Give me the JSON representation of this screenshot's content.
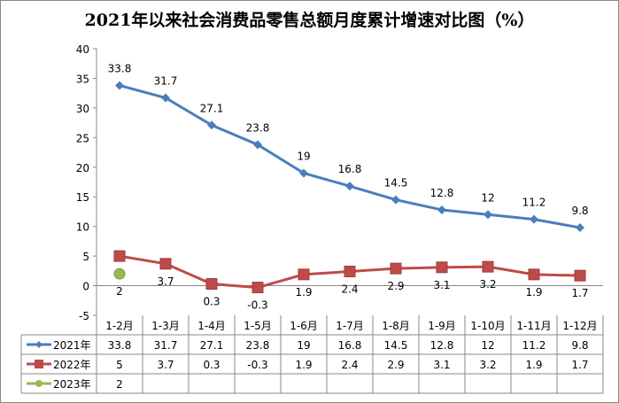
{
  "chart_data": {
    "type": "line",
    "title": "2021年以来社会消费品零售总额月度累计增速对比图（%）",
    "categories": [
      "1-2月",
      "1-3月",
      "1-4月",
      "1-5月",
      "1-6月",
      "1-7月",
      "1-8月",
      "1-9月",
      "1-10月",
      "1-11月",
      "1-12月"
    ],
    "series": [
      {
        "name": "2021年",
        "color": "#4a7ebb",
        "marker": "diamond",
        "values": [
          33.8,
          31.7,
          27.1,
          23.8,
          19,
          16.8,
          14.5,
          12.8,
          12,
          11.2,
          9.8
        ]
      },
      {
        "name": "2022年",
        "color": "#be4b48",
        "marker": "square",
        "values": [
          5,
          3.7,
          0.3,
          -0.3,
          1.9,
          2.4,
          2.9,
          3.1,
          3.2,
          1.9,
          1.7
        ]
      },
      {
        "name": "2023年",
        "color": "#98b954",
        "marker": "circle",
        "values": [
          2,
          null,
          null,
          null,
          null,
          null,
          null,
          null,
          null,
          null,
          null
        ]
      }
    ],
    "ylim": [
      -5,
      40
    ],
    "yticks": [
      -5,
      0,
      5,
      10,
      15,
      20,
      25,
      30,
      35,
      40
    ],
    "legend": "data-table",
    "grid": false
  }
}
